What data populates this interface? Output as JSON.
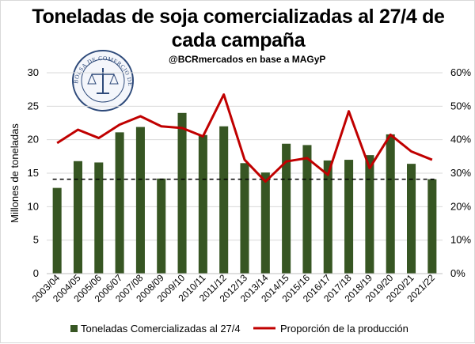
{
  "title_line1": "Toneladas de soja comercializadas al 27/4 de",
  "title_line2": "cada campaña",
  "subtitle": "@BCRmercados en base a MAGyP",
  "logo": {
    "text_top": "BOLSA DE COMERCIO DE ROSARIO"
  },
  "chart_data": {
    "type": "bar",
    "categories": [
      "2003/04",
      "2004/05",
      "2005/06",
      "2006/07",
      "2007/08",
      "2008/09",
      "2009/10",
      "2010/11",
      "2011/12",
      "2012/13",
      "2013/14",
      "2014/15",
      "2015/16",
      "2016/17",
      "2017/18",
      "2018/19",
      "2019/20",
      "2020/21",
      "2021/22"
    ],
    "series": [
      {
        "name": "Toneladas Comercializadas al 27/4",
        "type": "bar",
        "axis": "left",
        "color": "#375623",
        "values": [
          12.8,
          16.8,
          16.6,
          21.1,
          21.9,
          14.2,
          24.0,
          20.7,
          22.0,
          16.5,
          15.1,
          19.4,
          19.2,
          16.9,
          17.0,
          17.7,
          20.8,
          16.4,
          14.1
        ]
      },
      {
        "name": "Proporción de la producción",
        "type": "line",
        "axis": "right",
        "color": "#c00000",
        "values": [
          39,
          43,
          40.5,
          44.5,
          47,
          44,
          43.5,
          41,
          53.5,
          34,
          27.5,
          33.5,
          34.5,
          29.5,
          48.5,
          31.5,
          41.5,
          36.5,
          34
        ]
      }
    ],
    "average_line": {
      "value": 14.1,
      "style": "dashed",
      "color": "#000000"
    },
    "ylabel": "Millones de toneladas",
    "ylim": [
      0,
      30
    ],
    "yticks": [
      0,
      5,
      10,
      15,
      20,
      25,
      30
    ],
    "y2lim": [
      0,
      60
    ],
    "y2ticks": [
      "0%",
      "10%",
      "20%",
      "30%",
      "40%",
      "50%",
      "60%"
    ],
    "grid": true,
    "legend_position": "bottom"
  }
}
